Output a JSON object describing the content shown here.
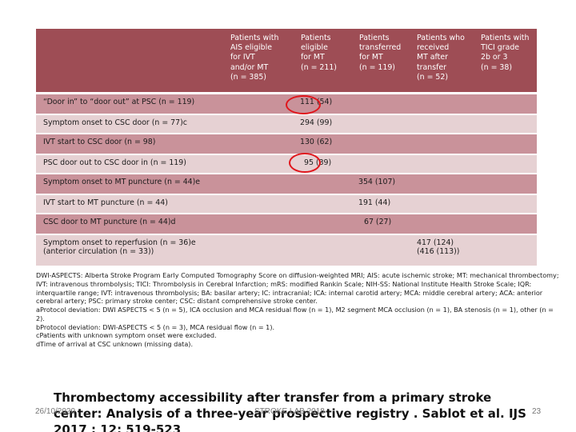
{
  "table": {
    "headers": [
      "Patients with\nAIS eligible\nfor IVT\nand/or MT\n(n = 385)",
      "Patients\neligible\nfor MT\n(n = 211)",
      "Patients\ntransferred\nfor MT\n(n = 119)",
      "Patients who\nreceived\nMT after\ntransfer\n(n = 52)",
      "Patients with\nTICI grade\n2b or 3\n(n = 38)"
    ],
    "rows": [
      {
        "label": "“Door in” to “door out” at PSC (n = 119)",
        "value": "111 (54)"
      },
      {
        "label": "Symptom onset to CSC door (n = 77)c",
        "value": "294 (99)"
      },
      {
        "label": "IVT start to CSC door (n = 98)",
        "value": "130 (62)"
      },
      {
        "label": "PSC door out to CSC door in (n = 119)",
        "value": "95 (39)"
      },
      {
        "label": "Symptom onset to MT puncture (n = 44)e",
        "value": "354 (107)"
      },
      {
        "label": "IVT start to MT puncture (n = 44)",
        "value": "191 (44)"
      },
      {
        "label": "CSC door to MT puncture (n = 44)d",
        "value": "67 (27)"
      },
      {
        "label": "Symptom onset to reperfusion (n = 36)e\n(anterior circulation (n = 33))",
        "value": "417 (124)\n(416 (113))"
      }
    ]
  },
  "notes": [
    "DWI-ASPECTS: Alberta Stroke Program Early Computed Tomography Score on diffusion-weighted MRI; AIS: acute ischemic stroke; MT: mechanical thrombectomy; IVT: intravenous thrombolysis; TICI: Thrombolysis in Cerebral Infarction; mRS: modified Rankin Scale; NIH-SS: National Institute Health Stroke Scale; IQR: interquartile range; IVT: intravenous thrombolysis; BA: basilar artery; IC: intracranial; ICA: internal carotid artery; MCA: middle cerebral artery; ACA: anterior cerebral artery; PSC: primary stroke center; CSC: distant comprehensive stroke center.",
    "aProtocol deviation: DWI ASPECTS < 5 (n = 5), ICA occlusion and MCA residual flow (n = 1), M2 segment MCA occlusion (n = 1), BA stenosis (n = 1), other (n = 2).",
    "bProtocol deviation: DWI-ASPECTS < 5 (n = 3), MCA residual flow (n = 1).",
    "cPatients with unknown symptom onset were excluded.",
    "dTime of arrival at CSC unknown (missing data)."
  ],
  "caption": "Thrombectomy accessibility after transfer from a primary stroke center: Analysis of a three-year prospective registry . Sablot et al. IJS 2017 ; 12: 519-523",
  "footer": {
    "date": "26/10/2020",
    "center": "STROKE LAB 2018",
    "page": "23"
  }
}
